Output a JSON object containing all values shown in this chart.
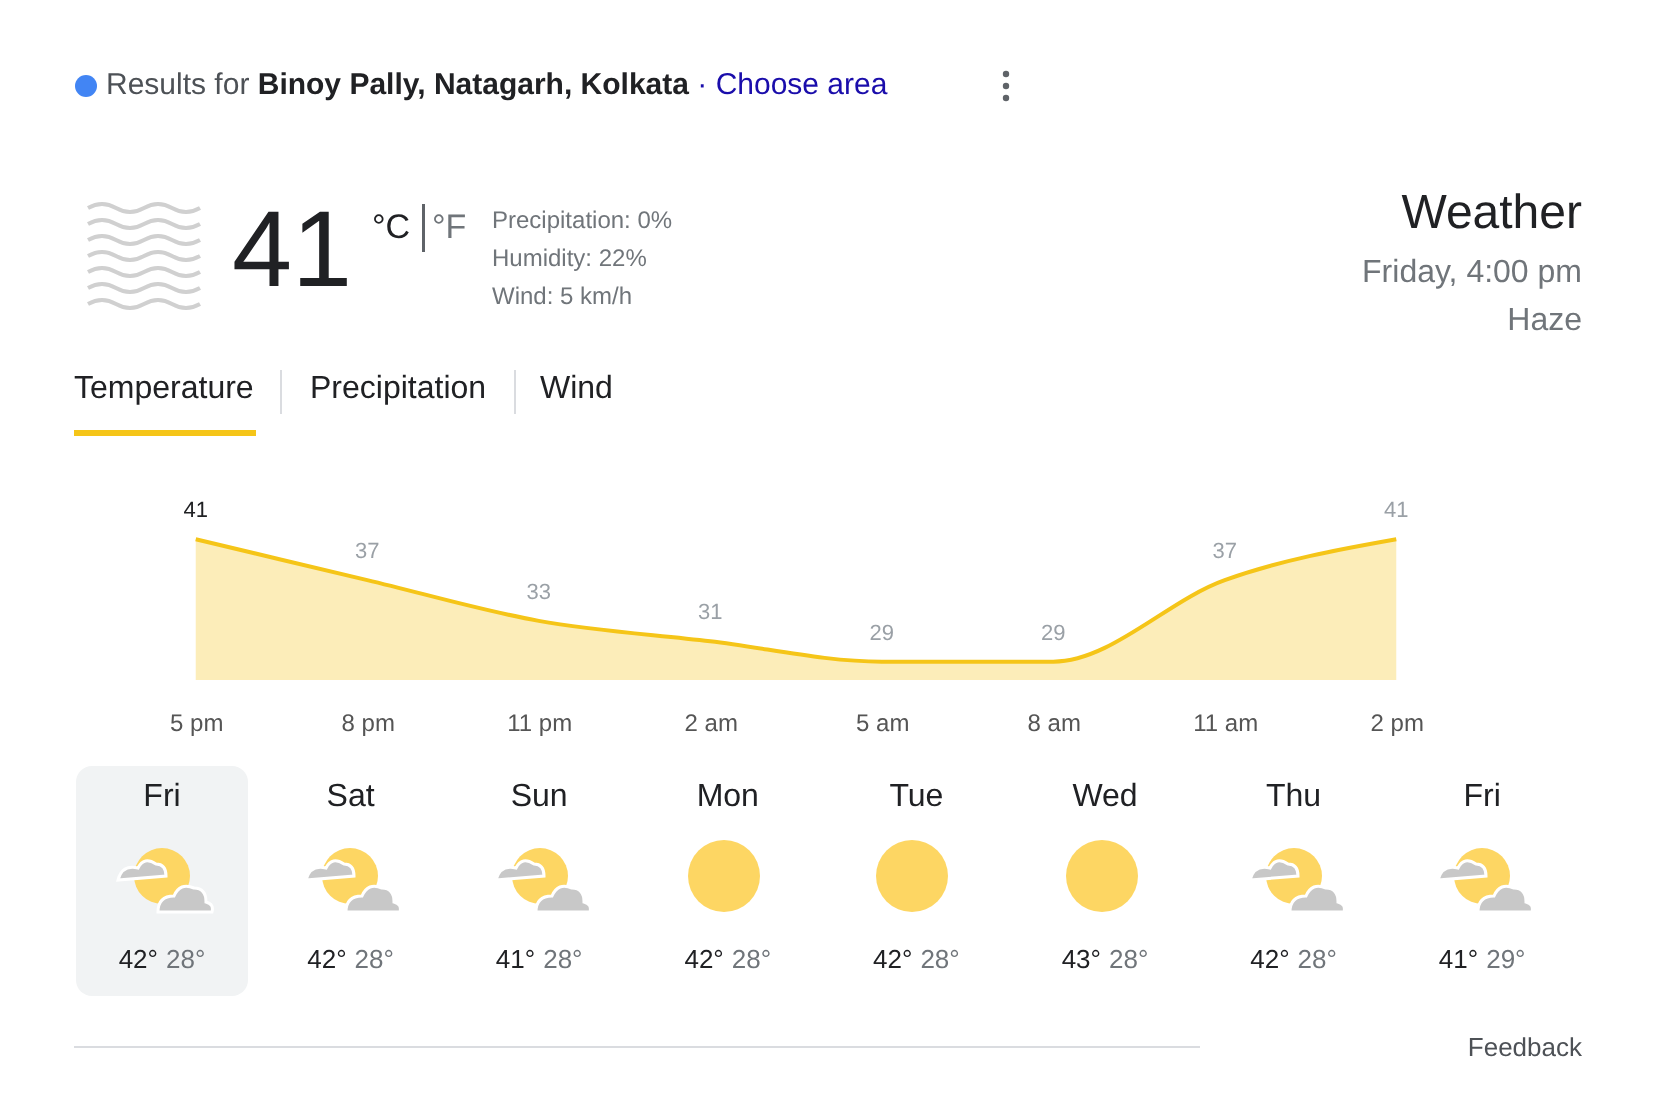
{
  "chart_data": [
    {
      "type": "other",
      "title": "Weather",
      "subtitle": "Friday, 4:00 pm",
      "annotations": [
        "Results for",
        "Binoy Pally, Natagarh, Kolkata",
        "· Choose area",
        "41",
        "°C",
        "°F",
        "Precipitation: 0%",
        "Humidity: 22%",
        "Wind: 5 km/h",
        "Haze",
        "Temperature",
        "Precipitation",
        "Wind"
      ]
    },
    {
      "type": "area",
      "categories": [
        "5 pm",
        "8 pm",
        "11 pm",
        "2 am",
        "5 am",
        "8 am",
        "11 am",
        "2 pm"
      ],
      "series": [
        {
          "color": "#f5c518",
          "values": [
            41,
            37,
            33,
            31,
            29,
            29,
            37,
            41
          ]
        }
      ],
      "data_labels": true
    },
    {
      "type": "other",
      "categories": [
        "Fri",
        "Sat",
        "Sun",
        "Mon",
        "Tue",
        "Wed",
        "Thu",
        "Fri"
      ],
      "annotations": [
        "42°",
        "28°",
        "42°",
        "28°",
        "41°",
        "28°",
        "42°",
        "28°",
        "42°",
        "28°",
        "43°",
        "28°",
        "42°",
        "28°",
        "41°",
        "29°",
        "Feedback"
      ]
    }
  ]
}
